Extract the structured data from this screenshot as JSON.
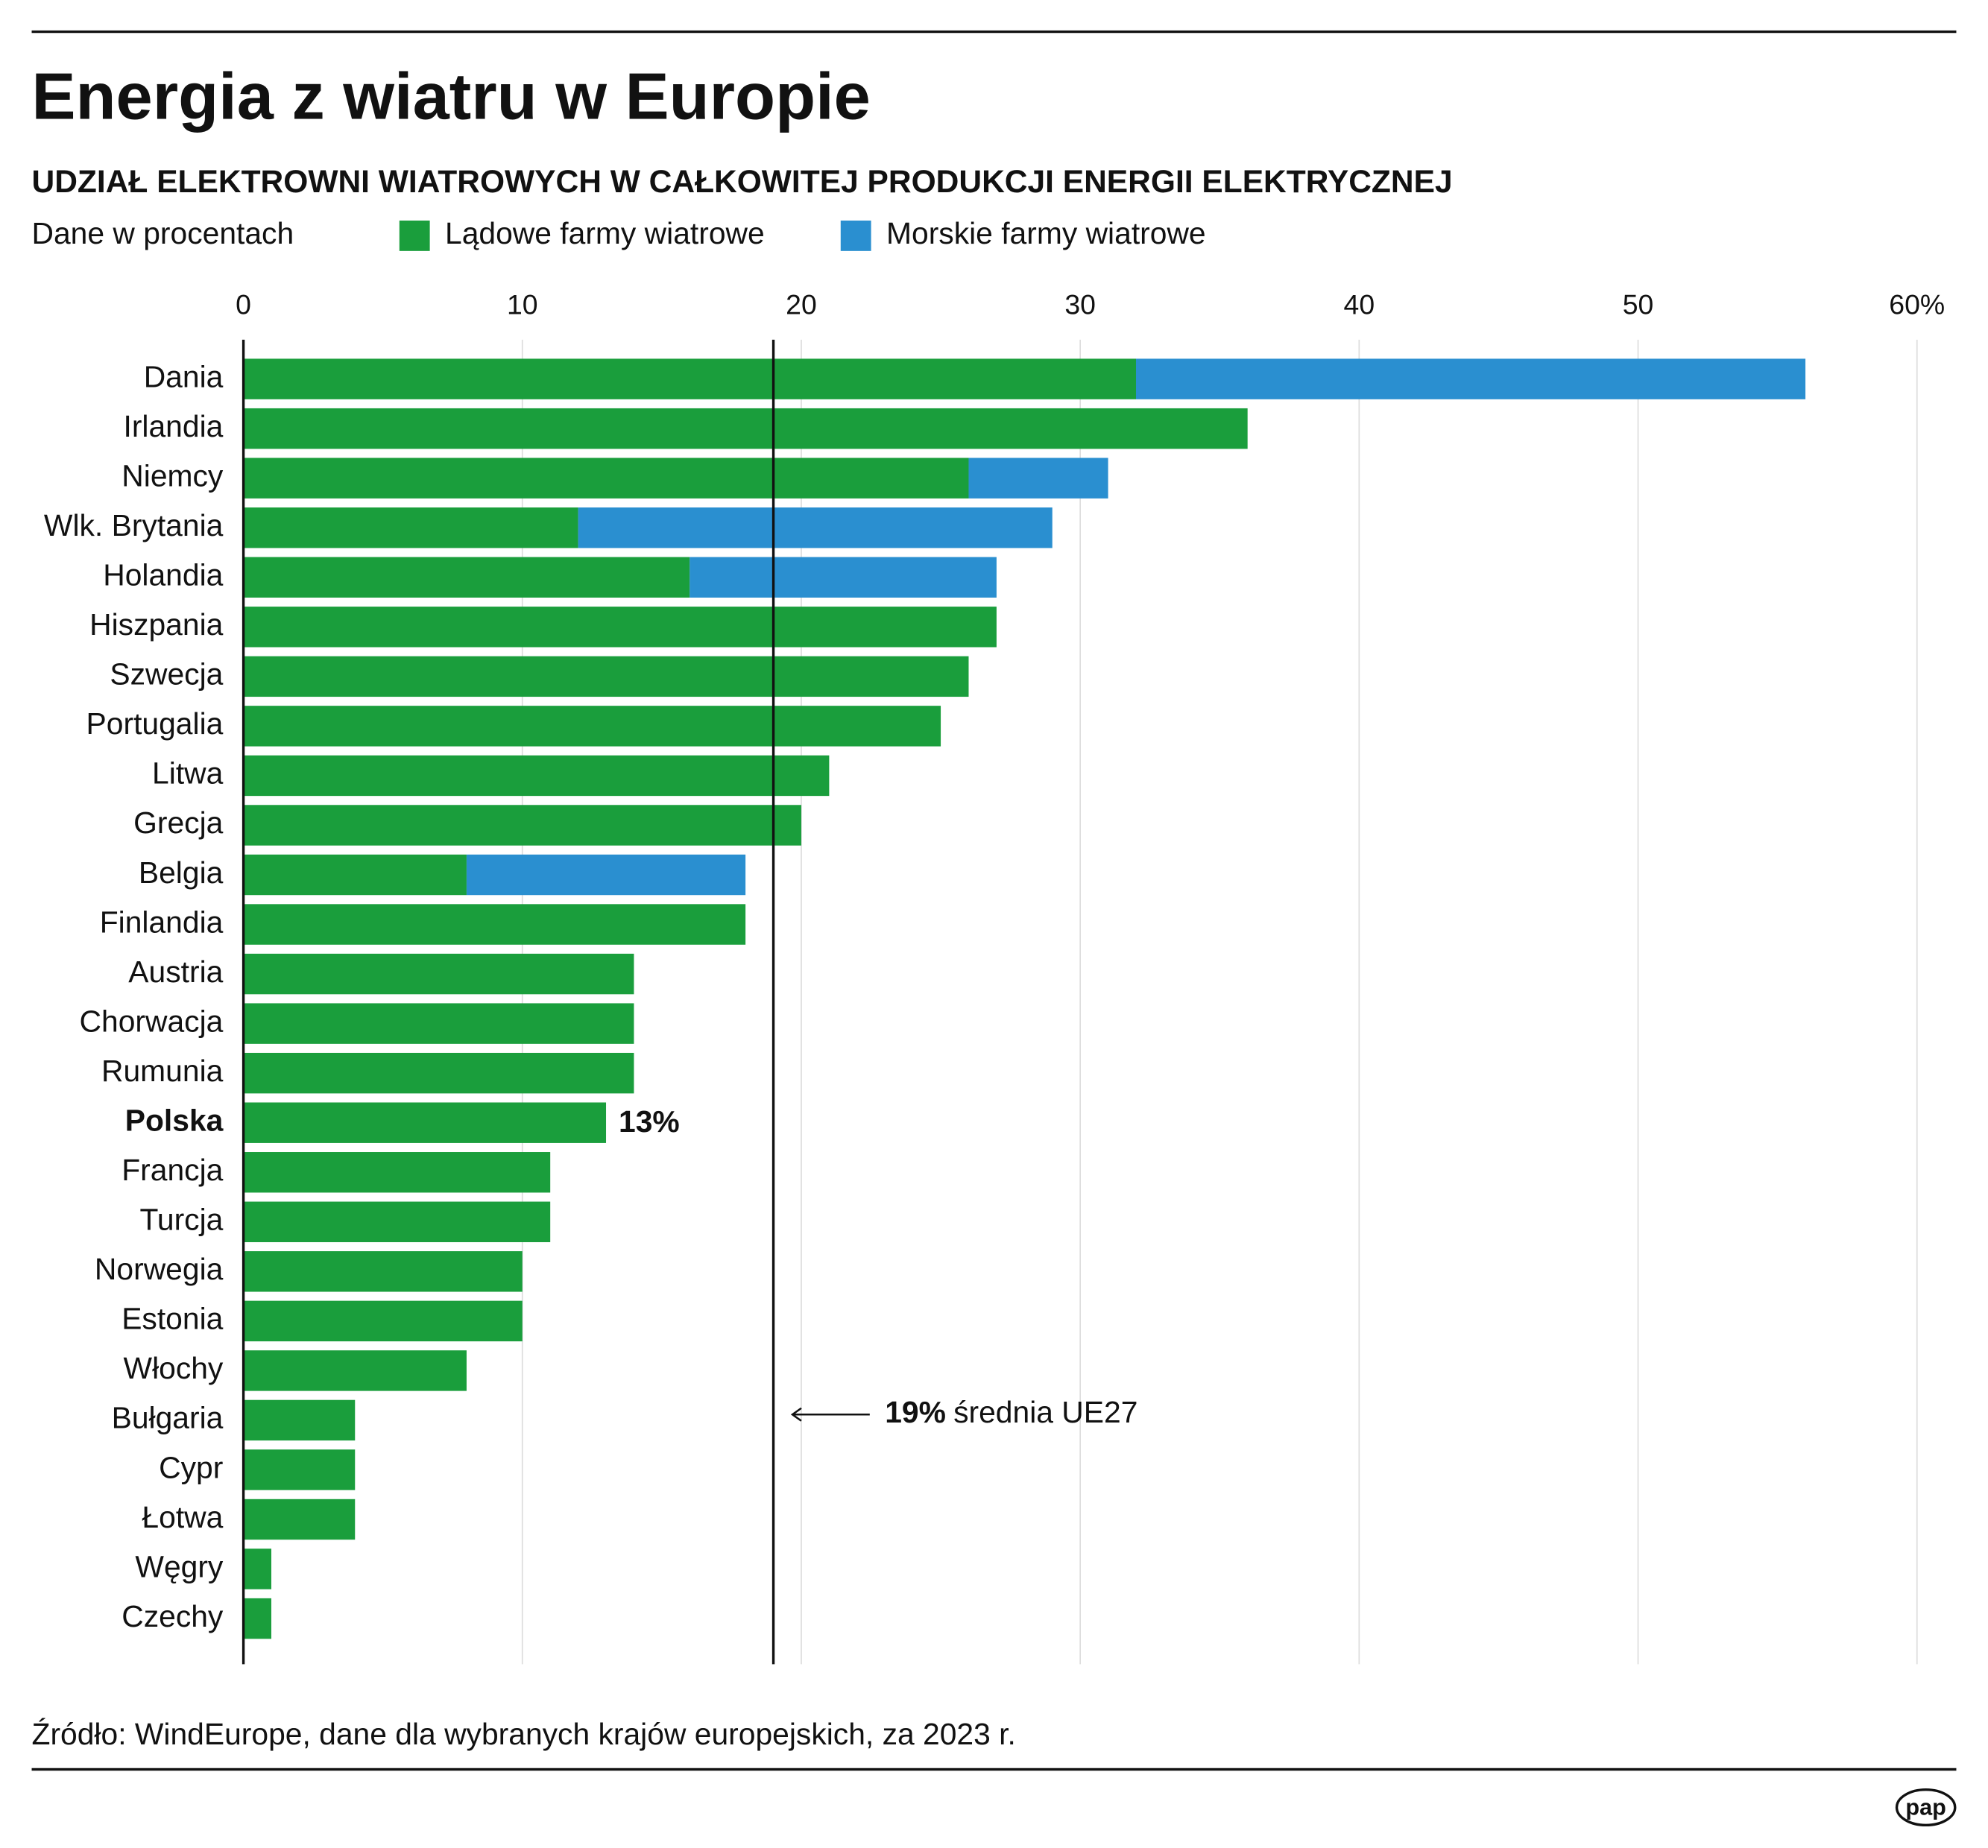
{
  "chart_data": {
    "type": "stacked-barh",
    "title": "Energia z wiatru w Europie",
    "subtitle": "UDZIAŁ ELEKTROWNI WIATROWYCH W CAŁKOWITEJ PRODUKCJI ENERGII ELEKTRYCZNEJ",
    "units_note": "Dane w procentach",
    "categories": [
      "Dania",
      "Irlandia",
      "Niemcy",
      "Wlk. Brytania",
      "Holandia",
      "Hiszpania",
      "Szwecja",
      "Portugalia",
      "Litwa",
      "Grecja",
      "Belgia",
      "Finlandia",
      "Austria",
      "Chorwacja",
      "Rumunia",
      "Polska",
      "Francja",
      "Turcja",
      "Norwegia",
      "Estonia",
      "Włochy",
      "Bułgaria",
      "Cypr",
      "Łotwa",
      "Węgry",
      "Czechy"
    ],
    "series": [
      {
        "name": "Lądowe farmy wiatrowe",
        "color": "#1a9e3c",
        "values": [
          32,
          36,
          26,
          12,
          16,
          27,
          26,
          25,
          21,
          20,
          8,
          18,
          14,
          14,
          14,
          13,
          11,
          11,
          10,
          10,
          8,
          4,
          4,
          4,
          1,
          1
        ],
        "value_labels": [
          null,
          null,
          null,
          null,
          null,
          null,
          null,
          null,
          null,
          null,
          null,
          null,
          null,
          null,
          null,
          "13%",
          null,
          null,
          null,
          null,
          null,
          null,
          null,
          null,
          null,
          null
        ]
      },
      {
        "name": "Morskie farmy wiatrowe",
        "color": "#2a8fd0",
        "values": [
          24,
          null,
          5,
          17,
          11,
          null,
          null,
          null,
          null,
          null,
          10,
          null,
          null,
          null,
          null,
          null,
          null,
          null,
          null,
          null,
          null,
          null,
          null,
          null,
          null,
          null
        ]
      }
    ],
    "xlim": [
      0,
      60
    ],
    "xticks": [
      0,
      10,
      20,
      30,
      40,
      50,
      {
        "value": 60,
        "label": "60%"
      }
    ],
    "grid": true,
    "annotations": [
      {
        "value": 19,
        "label": "19%",
        "text": "średnia UE27"
      }
    ],
    "source": "Źródło: WindEurope, dane dla wybranych krajów europejskich, za 2023 r.",
    "logo": "pap"
  }
}
